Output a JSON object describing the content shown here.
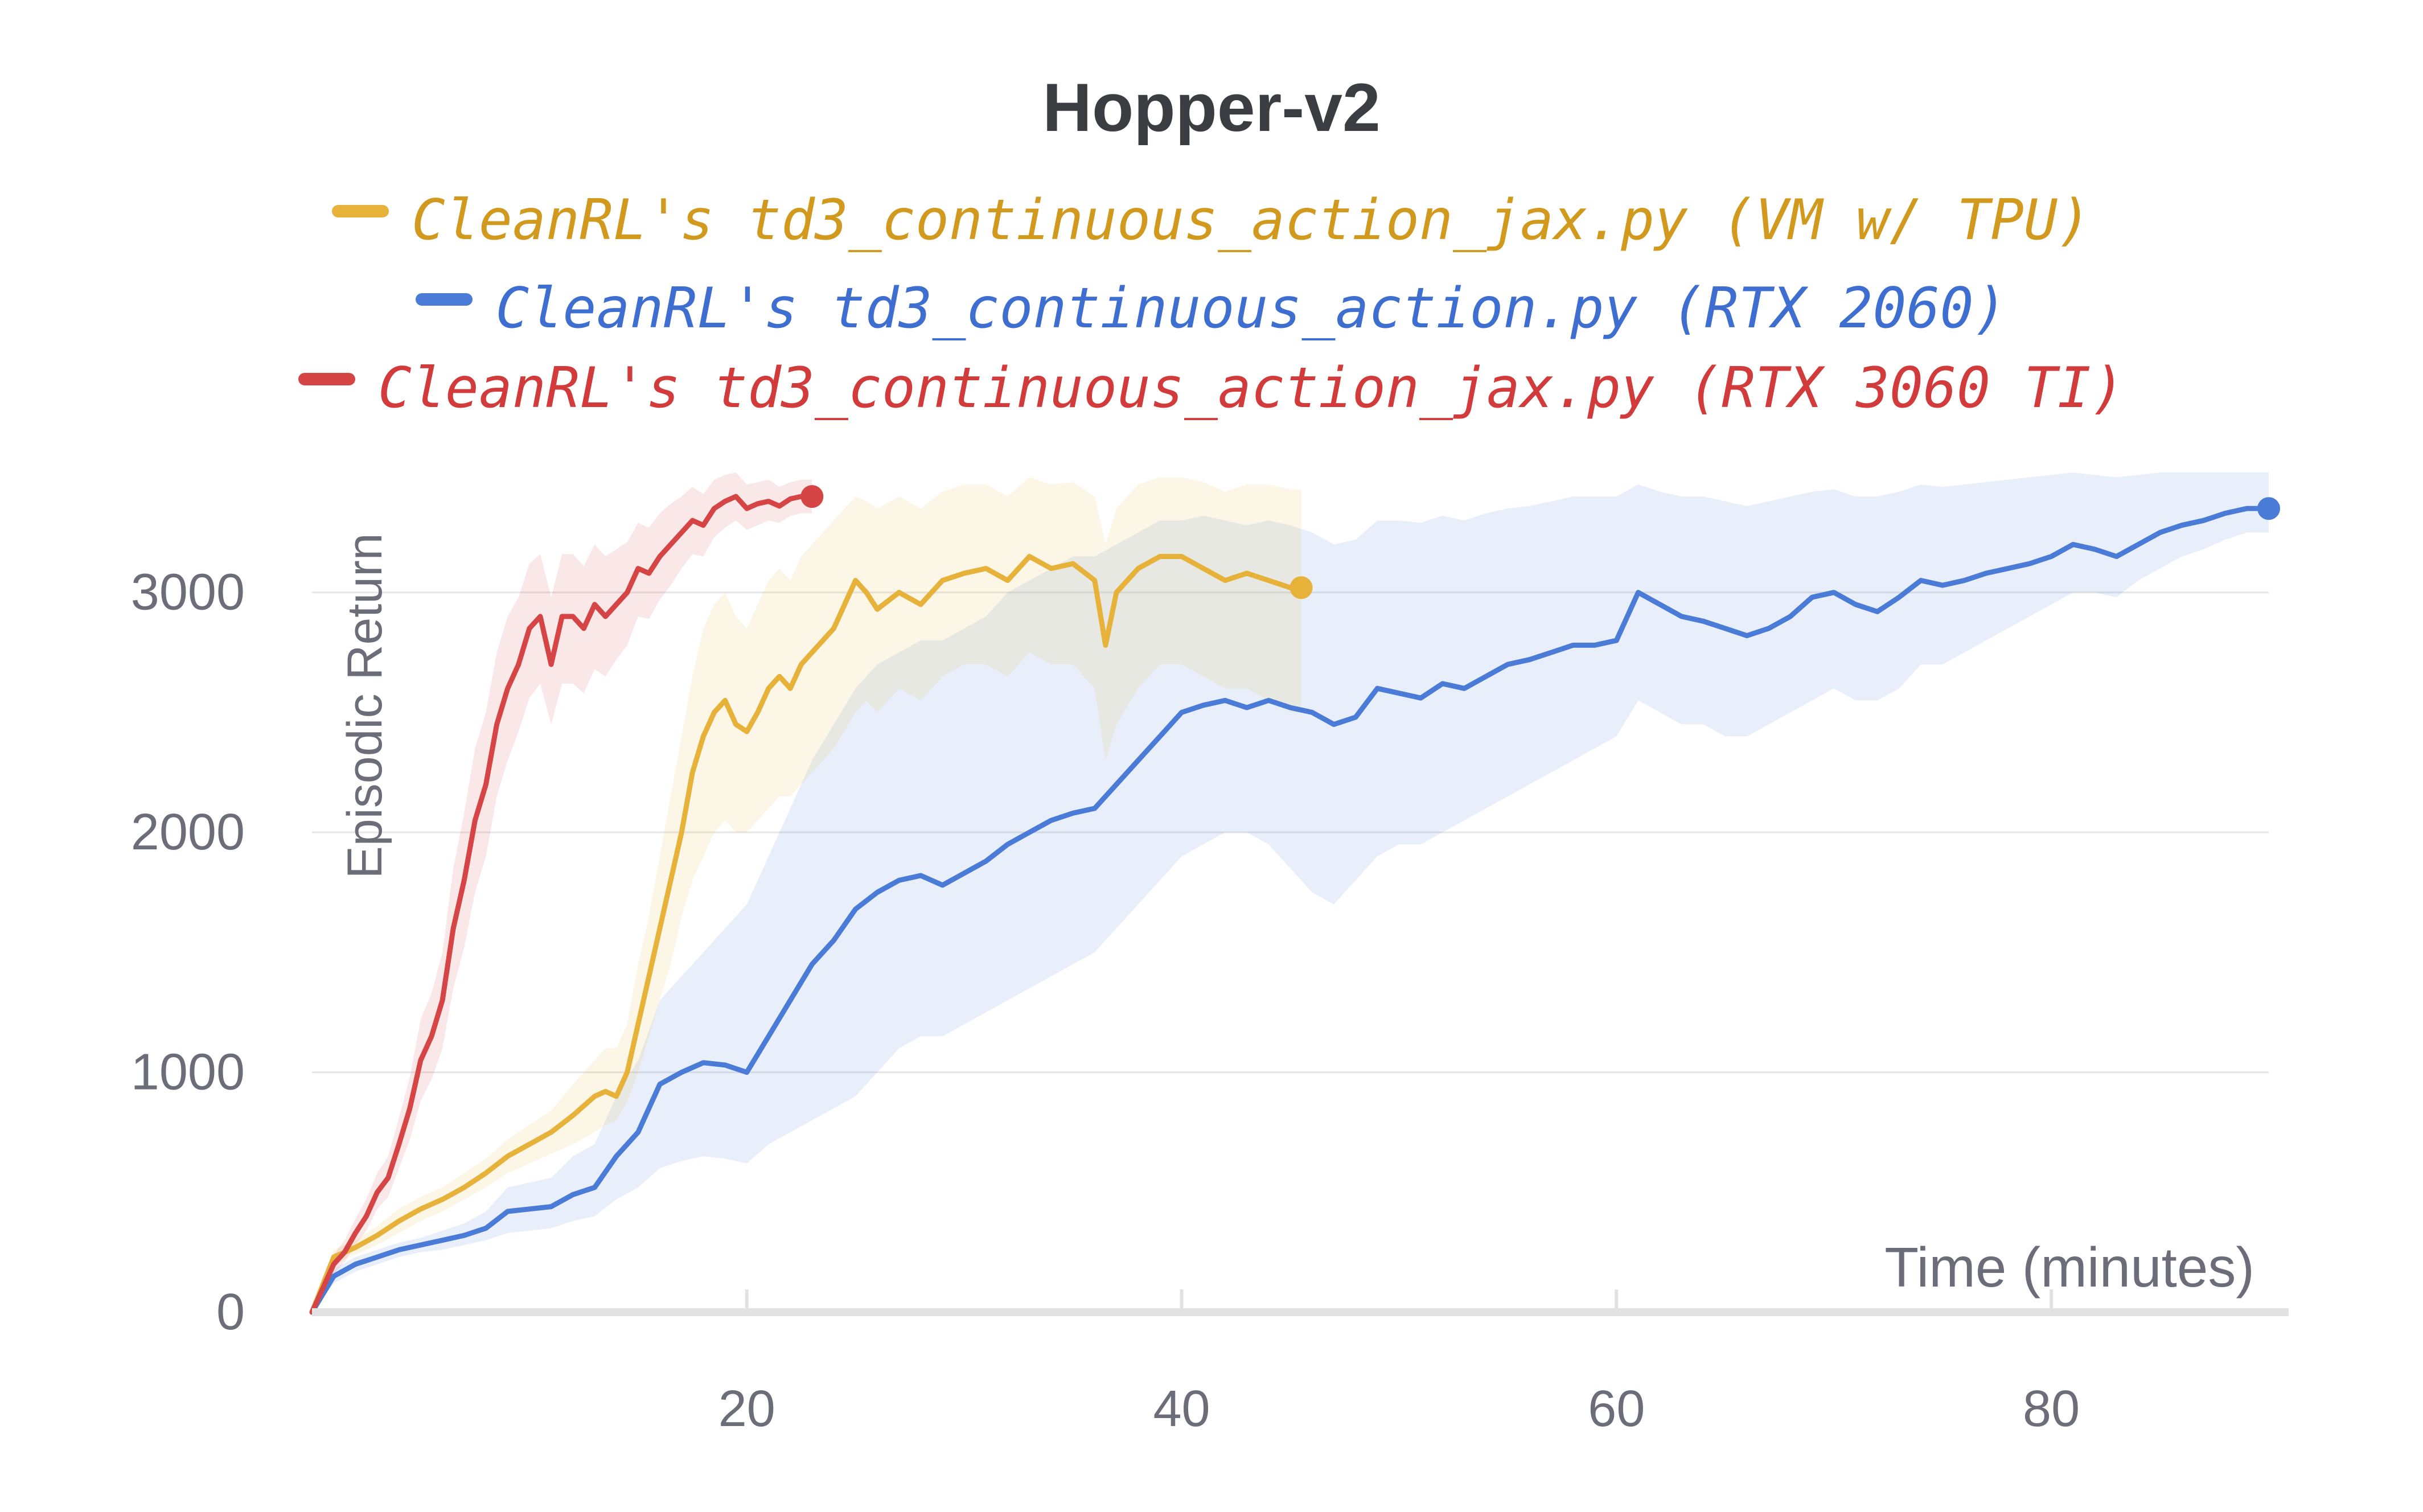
{
  "colors": {
    "red": "#d64545",
    "yellow": "#e6b23a",
    "blue": "#4a7bd6",
    "legend_yellow_text": "#d19a1e",
    "legend_blue_text": "#3e6fd0",
    "legend_red_text": "#d23b3b",
    "axis_text": "#6b6e78",
    "grid": "#e6e6e6",
    "axis_line": "#e2e2e2"
  },
  "chart_data": {
    "type": "line",
    "title": "Hopper-v2",
    "xlabel": "Time (minutes)",
    "ylabel": "Episodic Return",
    "xlim": [
      0,
      90
    ],
    "ylim": [
      0,
      3500
    ],
    "xticks": [
      20,
      40,
      60,
      80
    ],
    "yticks": [
      0,
      1000,
      2000,
      3000
    ],
    "grid": "horizontal",
    "legend_position": "top",
    "series": [
      {
        "name": "CleanRL's td3_continuous_action_jax.py (VM w/ TPU)",
        "color_key": "yellow",
        "legend_text_color_key": "legend_yellow_text",
        "x": [
          0,
          1,
          2,
          3,
          4,
          5,
          6,
          7,
          8,
          9,
          10,
          11,
          12,
          13,
          13.5,
          14,
          14.5,
          15,
          15.5,
          16,
          16.5,
          17,
          17.5,
          18,
          18.5,
          19,
          19.5,
          20,
          20.5,
          21,
          21.5,
          22,
          22.5,
          23,
          24,
          25,
          25.5,
          26,
          27,
          28,
          29,
          30,
          31,
          32,
          33,
          34,
          35,
          36,
          36.5,
          37,
          38,
          39,
          40,
          41,
          42,
          43,
          44,
          45,
          45.5
        ],
        "y": [
          0,
          230,
          270,
          320,
          380,
          430,
          470,
          520,
          580,
          650,
          700,
          750,
          820,
          900,
          920,
          900,
          1000,
          1200,
          1400,
          1600,
          1800,
          2000,
          2250,
          2400,
          2500,
          2550,
          2450,
          2420,
          2500,
          2600,
          2650,
          2600,
          2700,
          2750,
          2850,
          3050,
          3000,
          2930,
          3000,
          2950,
          3050,
          3080,
          3100,
          3050,
          3150,
          3100,
          3120,
          3050,
          2780,
          3000,
          3100,
          3150,
          3150,
          3100,
          3050,
          3080,
          3050,
          3020,
          3020
        ],
        "band_lower": [
          0,
          200,
          240,
          280,
          330,
          380,
          420,
          470,
          520,
          580,
          620,
          660,
          700,
          750,
          780,
          800,
          880,
          1000,
          1150,
          1300,
          1450,
          1650,
          1800,
          1900,
          2000,
          2050,
          2000,
          2000,
          2050,
          2100,
          2150,
          2150,
          2200,
          2250,
          2350,
          2500,
          2550,
          2500,
          2600,
          2550,
          2650,
          2700,
          2700,
          2650,
          2750,
          2700,
          2700,
          2600,
          2300,
          2450,
          2600,
          2700,
          2700,
          2650,
          2600,
          2600,
          2550,
          2500,
          2500
        ],
        "band_upper": [
          0,
          260,
          300,
          360,
          430,
          480,
          520,
          580,
          640,
          720,
          780,
          840,
          950,
          1050,
          1100,
          1100,
          1200,
          1450,
          1650,
          1900,
          2150,
          2400,
          2650,
          2850,
          2950,
          3000,
          2900,
          2850,
          2950,
          3050,
          3100,
          3050,
          3150,
          3200,
          3300,
          3400,
          3380,
          3350,
          3400,
          3350,
          3420,
          3450,
          3450,
          3400,
          3480,
          3450,
          3460,
          3400,
          3200,
          3350,
          3450,
          3480,
          3480,
          3460,
          3420,
          3450,
          3450,
          3430,
          3430
        ]
      },
      {
        "name": "CleanRL's td3_continuous_action.py (RTX 2060)",
        "color_key": "blue",
        "legend_text_color_key": "legend_blue_text",
        "x": [
          0,
          1,
          2,
          3,
          4,
          5,
          6,
          7,
          8,
          9,
          10,
          11,
          12,
          13,
          14,
          15,
          16,
          17,
          18,
          19,
          20,
          21,
          22,
          23,
          24,
          25,
          26,
          27,
          28,
          29,
          30,
          31,
          32,
          33,
          34,
          35,
          36,
          37,
          38,
          39,
          40,
          41,
          42,
          43,
          44,
          45,
          46,
          47,
          48,
          49,
          50,
          51,
          52,
          53,
          54,
          55,
          56,
          57,
          58,
          59,
          60,
          61,
          62,
          63,
          64,
          65,
          66,
          67,
          68,
          69,
          70,
          71,
          72,
          73,
          74,
          75,
          76,
          77,
          78,
          79,
          80,
          81,
          82,
          83,
          84,
          85,
          86,
          87,
          88,
          89,
          90
        ],
        "y": [
          0,
          150,
          200,
          230,
          260,
          280,
          300,
          320,
          350,
          420,
          430,
          440,
          490,
          520,
          650,
          750,
          950,
          1000,
          1040,
          1030,
          1000,
          1150,
          1300,
          1450,
          1550,
          1680,
          1750,
          1800,
          1820,
          1780,
          1830,
          1880,
          1950,
          2000,
          2050,
          2080,
          2100,
          2200,
          2300,
          2400,
          2500,
          2530,
          2550,
          2520,
          2550,
          2520,
          2500,
          2450,
          2480,
          2600,
          2580,
          2560,
          2620,
          2600,
          2650,
          2700,
          2720,
          2750,
          2780,
          2780,
          2800,
          3000,
          2950,
          2900,
          2880,
          2850,
          2820,
          2850,
          2900,
          2980,
          3000,
          2950,
          2920,
          2980,
          3050,
          3030,
          3050,
          3080,
          3100,
          3120,
          3150,
          3200,
          3180,
          3150,
          3200,
          3250,
          3280,
          3300,
          3330,
          3350,
          3350
        ],
        "band_lower": [
          0,
          120,
          170,
          200,
          230,
          250,
          260,
          280,
          300,
          330,
          340,
          350,
          380,
          400,
          470,
          520,
          600,
          630,
          650,
          640,
          620,
          700,
          750,
          800,
          850,
          900,
          1000,
          1100,
          1150,
          1150,
          1200,
          1250,
          1300,
          1350,
          1400,
          1450,
          1500,
          1600,
          1700,
          1800,
          1900,
          1950,
          2000,
          2000,
          1950,
          1850,
          1750,
          1700,
          1800,
          1900,
          1950,
          1950,
          2000,
          2050,
          2100,
          2150,
          2200,
          2250,
          2300,
          2350,
          2400,
          2550,
          2500,
          2450,
          2450,
          2400,
          2400,
          2450,
          2500,
          2550,
          2600,
          2550,
          2550,
          2600,
          2700,
          2700,
          2750,
          2800,
          2850,
          2900,
          2950,
          3000,
          3000,
          2980,
          3050,
          3100,
          3150,
          3180,
          3220,
          3250,
          3250
        ],
        "band_upper": [
          0,
          180,
          230,
          260,
          290,
          310,
          340,
          370,
          420,
          520,
          540,
          560,
          650,
          700,
          900,
          1050,
          1300,
          1400,
          1500,
          1600,
          1700,
          1900,
          2100,
          2300,
          2450,
          2600,
          2700,
          2750,
          2800,
          2800,
          2850,
          2900,
          3000,
          3050,
          3100,
          3150,
          3150,
          3200,
          3250,
          3300,
          3300,
          3320,
          3300,
          3280,
          3300,
          3280,
          3250,
          3200,
          3220,
          3300,
          3300,
          3290,
          3320,
          3300,
          3330,
          3350,
          3360,
          3380,
          3400,
          3400,
          3400,
          3450,
          3420,
          3400,
          3400,
          3380,
          3360,
          3380,
          3400,
          3420,
          3430,
          3400,
          3400,
          3420,
          3450,
          3440,
          3450,
          3460,
          3470,
          3480,
          3490,
          3500,
          3490,
          3480,
          3490,
          3500,
          3500,
          3500,
          3500,
          3500,
          3500
        ]
      },
      {
        "name": "CleanRL's td3_continuous_action_jax.py (RTX 3060 TI)",
        "color_key": "red",
        "legend_text_color_key": "legend_red_text",
        "x": [
          0,
          0.5,
          1,
          1.5,
          2,
          2.5,
          3,
          3.5,
          4,
          4.5,
          5,
          5.5,
          6,
          6.5,
          7,
          7.5,
          8,
          8.5,
          9,
          9.5,
          10,
          10.5,
          11,
          11.5,
          12,
          12.5,
          13,
          13.5,
          14,
          14.5,
          15,
          15.5,
          16,
          16.5,
          17,
          17.5,
          18,
          18.5,
          19,
          19.5,
          20,
          20.5,
          21,
          21.5,
          22,
          22.5,
          23
        ],
        "y": [
          0,
          100,
          200,
          250,
          330,
          400,
          500,
          560,
          700,
          850,
          1050,
          1150,
          1300,
          1600,
          1800,
          2050,
          2200,
          2450,
          2600,
          2700,
          2850,
          2900,
          2700,
          2900,
          2900,
          2850,
          2950,
          2900,
          2950,
          3000,
          3100,
          3080,
          3150,
          3200,
          3250,
          3300,
          3280,
          3350,
          3380,
          3400,
          3350,
          3370,
          3380,
          3360,
          3390,
          3400,
          3400
        ],
        "band_lower": [
          0,
          80,
          160,
          210,
          280,
          340,
          430,
          480,
          600,
          720,
          880,
          970,
          1100,
          1350,
          1520,
          1750,
          1900,
          2150,
          2300,
          2420,
          2560,
          2620,
          2450,
          2620,
          2620,
          2580,
          2680,
          2650,
          2720,
          2780,
          2900,
          2890,
          2970,
          3030,
          3100,
          3160,
          3150,
          3230,
          3270,
          3300,
          3260,
          3280,
          3300,
          3290,
          3320,
          3330,
          3330
        ],
        "band_upper": [
          0,
          120,
          240,
          300,
          390,
          470,
          580,
          650,
          810,
          980,
          1220,
          1330,
          1500,
          1850,
          2080,
          2350,
          2500,
          2750,
          2900,
          2980,
          3120,
          3160,
          2980,
          3160,
          3160,
          3110,
          3200,
          3150,
          3180,
          3210,
          3290,
          3270,
          3330,
          3370,
          3400,
          3440,
          3410,
          3470,
          3490,
          3500,
          3450,
          3460,
          3470,
          3440,
          3460,
          3470,
          3470
        ]
      }
    ]
  }
}
